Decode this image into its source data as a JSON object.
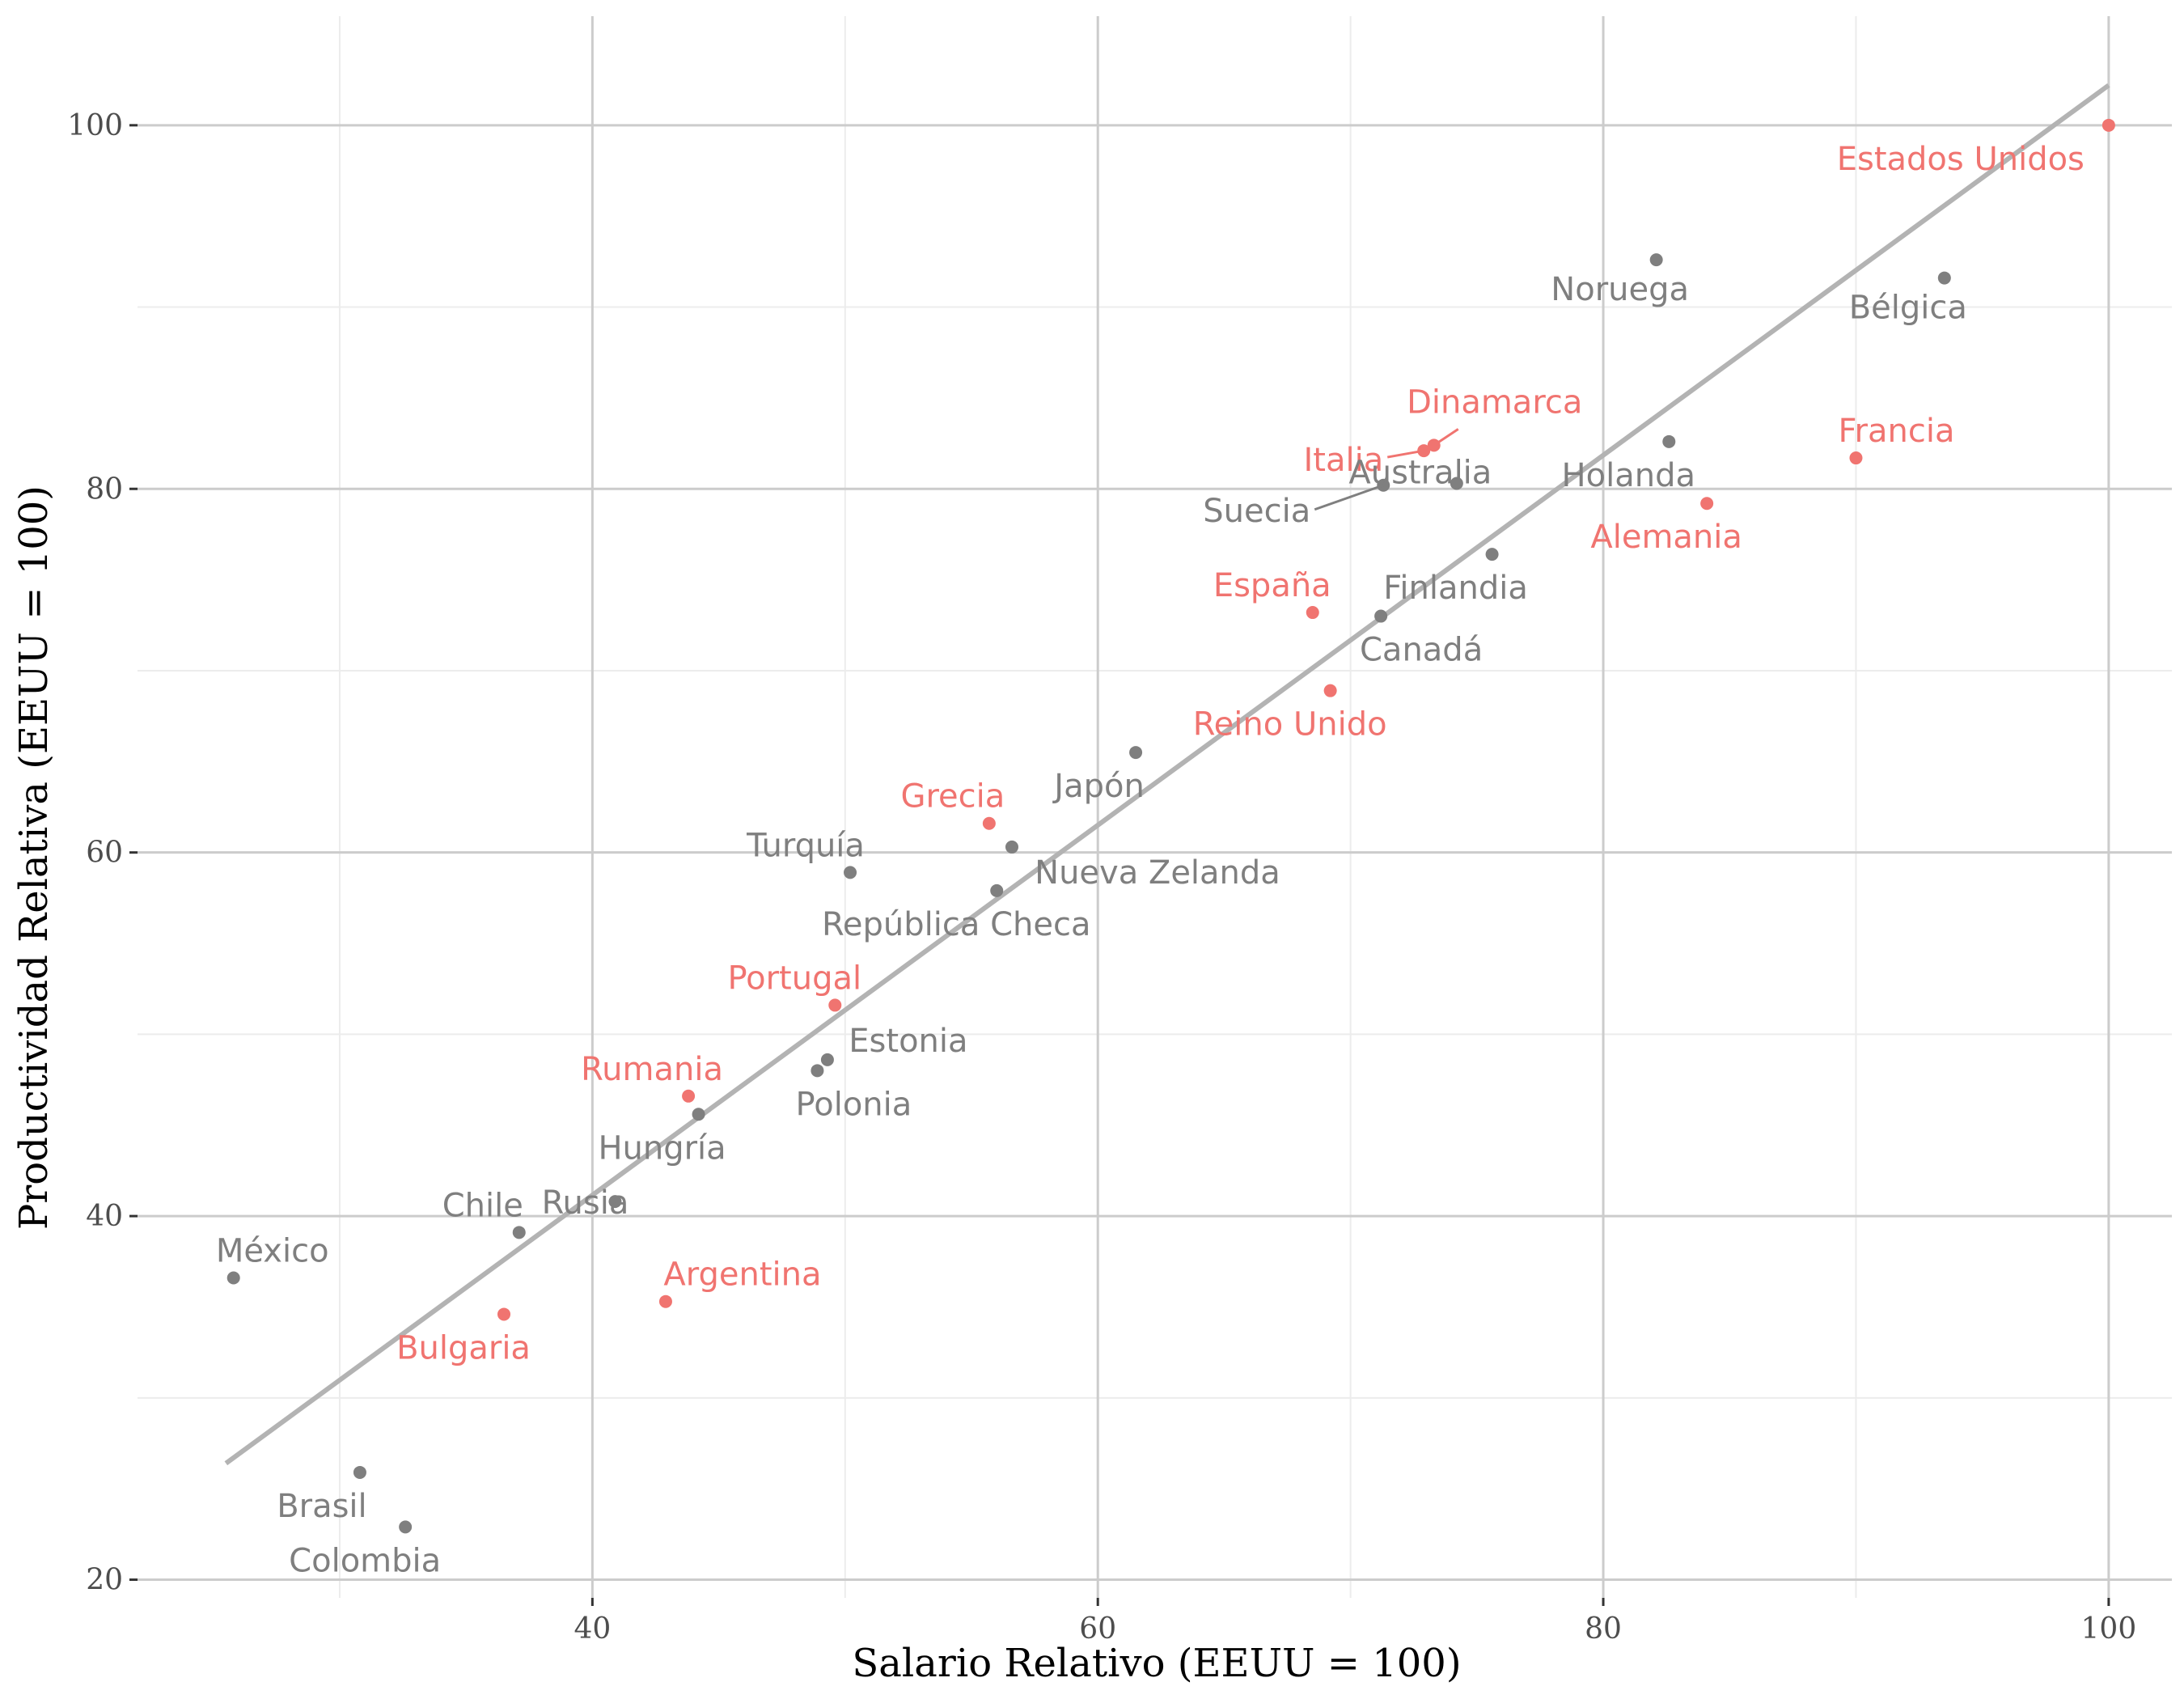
{
  "chart_data": {
    "type": "scatter",
    "title": "",
    "xlabel": "Salario Relativo (EEUU = 100)",
    "ylabel": "Productividad Relativa (EEUU = 100)",
    "xlim": [
      22,
      102.5
    ],
    "ylim": [
      19,
      106
    ],
    "x_ticks": [
      40,
      60,
      80,
      100
    ],
    "y_ticks": [
      20,
      40,
      60,
      80,
      100
    ],
    "x_tick_labels": [
      "40",
      "60",
      "80",
      "100"
    ],
    "y_tick_labels": [
      "20",
      "40",
      "60",
      "80",
      "100"
    ],
    "grid": true,
    "colors": {
      "highlight": "#f07470",
      "other": "#7f7f7f",
      "fit_line": "#b3b3b3",
      "grid_major": "#cccccc",
      "grid_minor": "#ececec"
    },
    "fit_line": {
      "x": [
        25.5,
        100
      ],
      "y": [
        26.4,
        102.2
      ]
    },
    "points": [
      {
        "name": "Estados Unidos",
        "x": 100.0,
        "y": 100.0,
        "group": "highlight"
      },
      {
        "name": "Noruega",
        "x": 82.1,
        "y": 92.6,
        "group": "other"
      },
      {
        "name": "Bélgica",
        "x": 93.5,
        "y": 91.6,
        "group": "other"
      },
      {
        "name": "Dinamarca",
        "x": 73.3,
        "y": 82.4,
        "group": "highlight"
      },
      {
        "name": "Italia",
        "x": 72.9,
        "y": 82.1,
        "group": "highlight"
      },
      {
        "name": "Francia",
        "x": 90.0,
        "y": 81.7,
        "group": "highlight"
      },
      {
        "name": "Holanda",
        "x": 82.6,
        "y": 82.6,
        "group": "other"
      },
      {
        "name": "Suecia",
        "x": 71.3,
        "y": 80.2,
        "group": "other"
      },
      {
        "name": "Australia",
        "x": 74.2,
        "y": 80.3,
        "group": "other"
      },
      {
        "name": "Alemania",
        "x": 84.1,
        "y": 79.2,
        "group": "highlight"
      },
      {
        "name": "Finlandia",
        "x": 75.6,
        "y": 76.4,
        "group": "other"
      },
      {
        "name": "España",
        "x": 68.5,
        "y": 73.2,
        "group": "highlight"
      },
      {
        "name": "Canadá",
        "x": 71.2,
        "y": 73.0,
        "group": "other"
      },
      {
        "name": "Reino Unido",
        "x": 69.2,
        "y": 68.9,
        "group": "highlight"
      },
      {
        "name": "Japón",
        "x": 61.5,
        "y": 65.5,
        "group": "other"
      },
      {
        "name": "Grecia",
        "x": 55.7,
        "y": 61.6,
        "group": "highlight"
      },
      {
        "name": "Nueva Zelanda",
        "x": 56.6,
        "y": 60.3,
        "group": "other"
      },
      {
        "name": "Turquía",
        "x": 50.2,
        "y": 58.9,
        "group": "other"
      },
      {
        "name": "República Checa",
        "x": 56.0,
        "y": 57.9,
        "group": "other"
      },
      {
        "name": "Portugal",
        "x": 49.6,
        "y": 51.6,
        "group": "highlight"
      },
      {
        "name": "Estonia",
        "x": 49.3,
        "y": 48.6,
        "group": "other"
      },
      {
        "name": "Polonia",
        "x": 48.9,
        "y": 48.0,
        "group": "other"
      },
      {
        "name": "Rumania",
        "x": 43.8,
        "y": 46.6,
        "group": "highlight"
      },
      {
        "name": "Hungría",
        "x": 44.2,
        "y": 45.6,
        "group": "other"
      },
      {
        "name": "Rusia",
        "x": 40.9,
        "y": 40.8,
        "group": "other"
      },
      {
        "name": "Chile",
        "x": 37.1,
        "y": 39.1,
        "group": "other"
      },
      {
        "name": "México",
        "x": 25.8,
        "y": 36.6,
        "group": "other"
      },
      {
        "name": "Argentina",
        "x": 42.9,
        "y": 35.3,
        "group": "highlight"
      },
      {
        "name": "Bulgaria",
        "x": 36.5,
        "y": 34.6,
        "group": "highlight"
      },
      {
        "name": "Brasil",
        "x": 30.8,
        "y": 25.9,
        "group": "other"
      },
      {
        "name": "Colombia",
        "x": 32.6,
        "y": 22.9,
        "group": "other"
      }
    ]
  }
}
